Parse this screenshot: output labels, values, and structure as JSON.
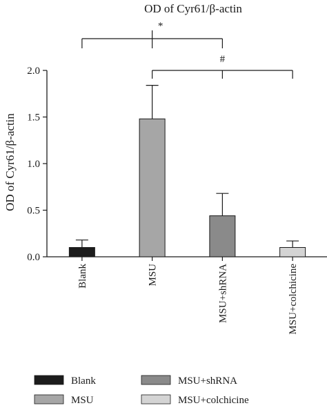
{
  "chart_data": {
    "type": "bar",
    "title": "OD of Cyr61/β-actin",
    "ylabel": "OD of Cyr61/β-actin",
    "xlabel": "",
    "ylim": [
      0,
      2.0
    ],
    "yticks": [
      0.0,
      0.5,
      1.0,
      1.5,
      2.0
    ],
    "ytick_labels": [
      "0.0",
      "0.5",
      "1.0",
      "1.5",
      "2.0"
    ],
    "categories": [
      "Blank",
      "MSU",
      "MSU+shRNA",
      "MSU+colchicine"
    ],
    "values": [
      0.1,
      1.48,
      0.44,
      0.1
    ],
    "errors": [
      0.08,
      0.36,
      0.24,
      0.07
    ],
    "colors": [
      "#1c1c1c",
      "#a6a6a6",
      "#8a8a8a",
      "#d4d4d4"
    ],
    "significance": [
      {
        "symbol": "*",
        "from": "MSU",
        "to": [
          "Blank",
          "MSU+shRNA"
        ]
      },
      {
        "symbol": "#",
        "from": "MSU",
        "to": [
          "MSU+shRNA",
          "MSU+colchicine"
        ]
      }
    ],
    "legend": {
      "placement": "bottom",
      "entries": [
        "Blank",
        "MSU",
        "MSU+shRNA",
        "MSU+colchicine"
      ]
    },
    "grid": false
  }
}
